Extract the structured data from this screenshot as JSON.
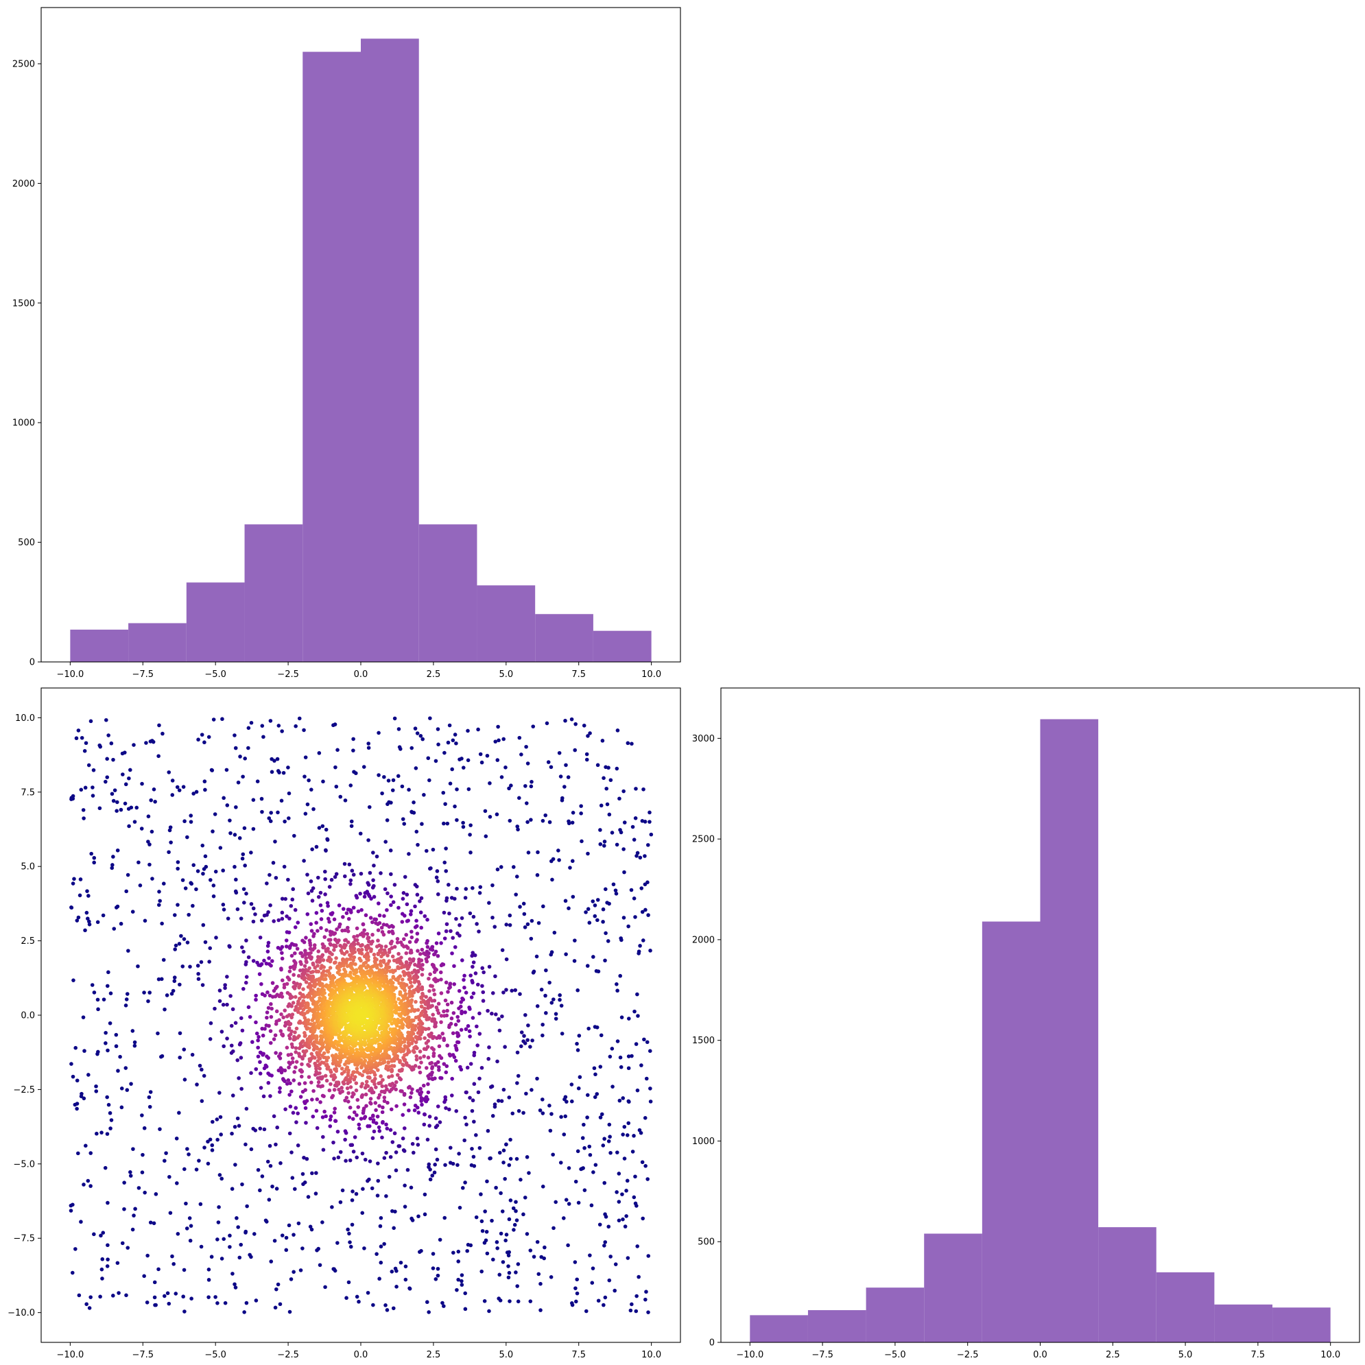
{
  "figure": {
    "layout": "2x2 grid, top-right empty"
  },
  "colors": {
    "bar_fill": "#9467bd",
    "axis": "#000000",
    "scatter_colormap": [
      "#0d0887",
      "#6a00a8",
      "#b12a90",
      "#e16462",
      "#fca636",
      "#f0f921"
    ]
  },
  "chart_data": [
    {
      "type": "bar",
      "subtype": "histogram",
      "position": "top-left",
      "bin_edges": [
        -10,
        -8,
        -6,
        -4,
        -2,
        0,
        2,
        4,
        6,
        8,
        10
      ],
      "values": [
        135,
        162,
        332,
        575,
        2550,
        2605,
        575,
        320,
        200,
        130
      ],
      "xlim": [
        -11,
        11
      ],
      "ylim": [
        0,
        2735
      ],
      "x_ticks": [
        -10,
        -7.5,
        -5,
        -2.5,
        0,
        2.5,
        5,
        7.5,
        10
      ],
      "x_tick_labels": [
        "−10.0",
        "−7.5",
        "−5.0",
        "−2.5",
        "0.0",
        "2.5",
        "5.0",
        "7.5",
        "10.0"
      ],
      "y_ticks": [
        0,
        500,
        1000,
        1500,
        2000,
        2500
      ],
      "y_tick_labels": [
        "0",
        "500",
        "1000",
        "1500",
        "2000",
        "2500"
      ],
      "title": "",
      "xlabel": "",
      "ylabel": ""
    },
    {
      "type": "scatter",
      "position": "bottom-left",
      "color_encoding": "point density (plasma colormap), bright yellow at the center",
      "distribution": "dense cluster centered at (0, 0) over a uniform background spanning -10 to 10 on both axes",
      "xlim": [
        -11,
        11
      ],
      "ylim": [
        -11,
        11
      ],
      "x_ticks": [
        -10,
        -7.5,
        -5,
        -2.5,
        0,
        2.5,
        5,
        7.5,
        10
      ],
      "x_tick_labels": [
        "−10.0",
        "−7.5",
        "−5.0",
        "−2.5",
        "0.0",
        "2.5",
        "5.0",
        "7.5",
        "10.0"
      ],
      "y_ticks": [
        -10,
        -7.5,
        -5,
        -2.5,
        0,
        2.5,
        5,
        7.5,
        10
      ],
      "y_tick_labels": [
        "−10.0",
        "−7.5",
        "−5.0",
        "−2.5",
        "0.0",
        "2.5",
        "5.0",
        "7.5",
        "10.0"
      ],
      "title": "",
      "xlabel": "",
      "ylabel": ""
    },
    {
      "type": "bar",
      "subtype": "histogram",
      "position": "bottom-right",
      "bin_edges": [
        -10,
        -8,
        -6,
        -4,
        -2,
        0,
        2,
        4,
        6,
        8,
        10
      ],
      "values": [
        135,
        160,
        272,
        540,
        2090,
        3095,
        572,
        348,
        188,
        173
      ],
      "xlim": [
        -11,
        11
      ],
      "ylim": [
        0,
        3250
      ],
      "x_ticks": [
        -10,
        -7.5,
        -5,
        -2.5,
        0,
        2.5,
        5,
        7.5,
        10
      ],
      "x_tick_labels": [
        "−10.0",
        "−7.5",
        "−5.0",
        "−2.5",
        "0.0",
        "2.5",
        "5.0",
        "7.5",
        "10.0"
      ],
      "y_ticks": [
        0,
        500,
        1000,
        1500,
        2000,
        2500,
        3000
      ],
      "y_tick_labels": [
        "0",
        "500",
        "1000",
        "1500",
        "2000",
        "2500",
        "3000"
      ],
      "title": "",
      "xlabel": "",
      "ylabel": ""
    }
  ]
}
